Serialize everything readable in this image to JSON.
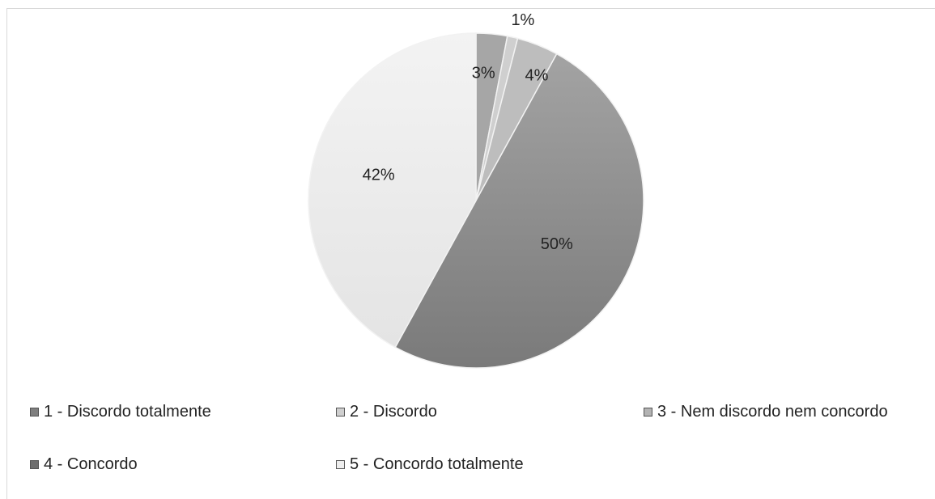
{
  "chart_data": {
    "type": "pie",
    "slices": [
      {
        "label": "1 - Discordo totalmente",
        "value": 3,
        "value_label": "3%",
        "color": "#a6a6a6"
      },
      {
        "label": "2 - Discordo",
        "value": 1,
        "value_label": "1%",
        "color": "#cfcfcf"
      },
      {
        "label": "3 - Nem discordo nem concordo",
        "value": 4,
        "value_label": "4%",
        "color": "#bdbdbd"
      },
      {
        "label": "4 - Concordo",
        "value": 50,
        "value_label": "50%",
        "color": "#8a8a8a"
      },
      {
        "label": "5 - Concordo totalmente",
        "value": 42,
        "value_label": "42%",
        "color": "#ececec"
      }
    ],
    "legend_position": "bottom"
  },
  "legend": {
    "items": [
      {
        "label": "1 - Discordo totalmente",
        "color": "#7f7f7f"
      },
      {
        "label": "2 - Discordo",
        "color": "#cfcfcf"
      },
      {
        "label": "3 - Nem discordo nem concordo",
        "color": "#b3b3b3"
      },
      {
        "label": "4 - Concordo",
        "color": "#6e6e6e"
      },
      {
        "label": "5 - Concordo totalmente",
        "color": "#eeeeee"
      }
    ]
  }
}
